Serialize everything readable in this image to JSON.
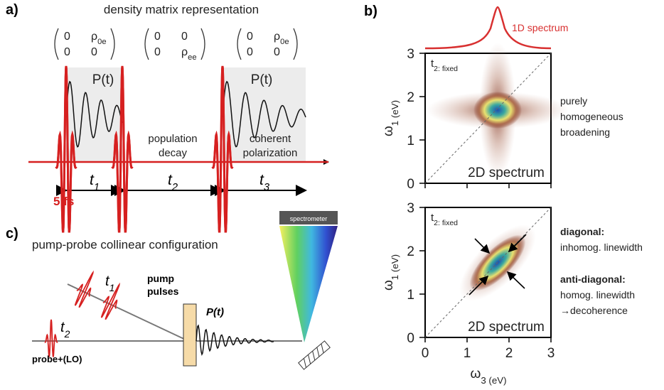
{
  "panel_a": {
    "label": "a)",
    "title": "density matrix representation",
    "matrices": [
      [
        [
          "0",
          "ρ0e"
        ],
        [
          "0",
          "0"
        ]
      ],
      [
        [
          "0",
          "0"
        ],
        [
          "0",
          "ρee"
        ]
      ],
      [
        [
          "0",
          "ρ0e"
        ],
        [
          "0",
          "0"
        ]
      ]
    ],
    "signal_labels": [
      "P(t)",
      "P(t)"
    ],
    "population_decay": [
      "population",
      "decay"
    ],
    "coherent_polarization": [
      "coherent",
      "polarization"
    ],
    "delays": [
      "t1",
      "t2",
      "t3"
    ],
    "pulse_duration": "5 fs"
  },
  "panel_b": {
    "label": "b)",
    "spectrum_1d": "1D spectrum",
    "plots": [
      {
        "condition": "t2: fixed",
        "name": "2D spectrum",
        "y_label": "ω1 (eV)",
        "yticks": [
          0,
          1,
          2,
          3
        ],
        "notes": [
          {
            "text": "purely",
            "bold": false
          },
          {
            "text": "homogeneous",
            "bold": false
          },
          {
            "text": "broadening",
            "bold": false
          }
        ]
      },
      {
        "condition": "t2: fixed",
        "name": "2D spectrum",
        "y_label": "ω1 (eV)",
        "yticks": [
          0,
          1,
          2,
          3
        ],
        "notes": [
          {
            "text": "diagonal:",
            "bold": true
          },
          {
            "text": "inhomog. linewidth",
            "bold": false
          },
          {
            "text": "anti-diagonal:",
            "bold": true
          },
          {
            "text": "homog. linewidth",
            "bold": false
          },
          {
            "text": "→decoherence",
            "bold": false
          }
        ]
      }
    ],
    "x_label": "ω3 (eV)",
    "xticks": [
      0,
      1,
      2,
      3
    ]
  },
  "panel_c": {
    "label": "c)",
    "title": "pump-probe collinear configuration",
    "pump_delay": "t1",
    "pump": [
      "pump",
      "pulses"
    ],
    "probe_delay": "t2",
    "probe": "probe+(LO)",
    "signal": "P(t)",
    "detector": "spectrometer"
  }
}
